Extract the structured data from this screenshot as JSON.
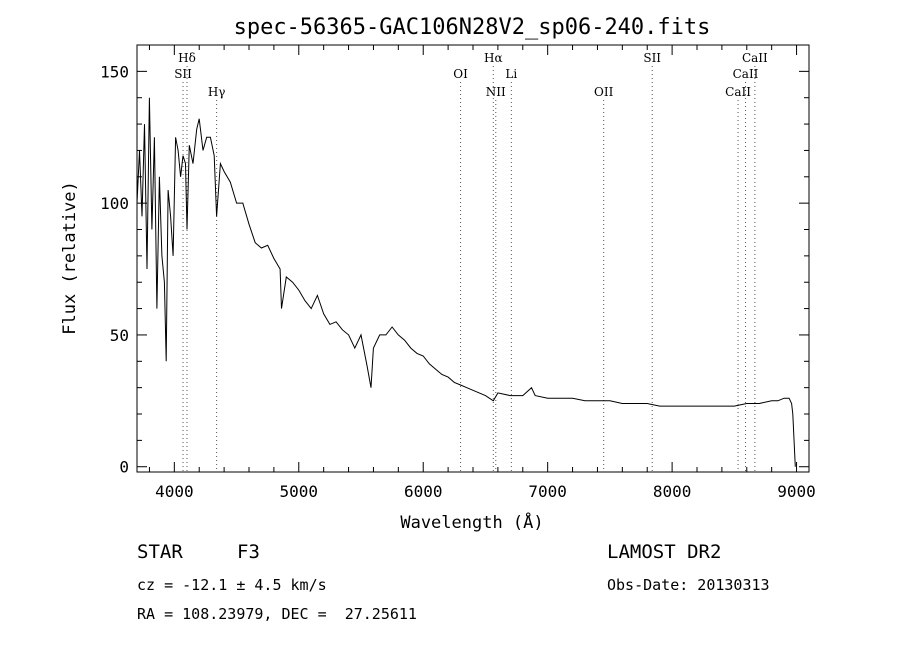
{
  "chart_data": {
    "type": "line",
    "title": "spec-56365-GAC106N28V2_sp06-240.fits",
    "xlabel": "Wavelength (Å)",
    "ylabel": "Flux (relative)",
    "xlim": [
      3700,
      9100
    ],
    "ylim": [
      -2,
      160
    ],
    "xticks": [
      "4000",
      "5000",
      "6000",
      "7000",
      "8000",
      "9000"
    ],
    "yticks": [
      "0",
      "50",
      "100",
      "150"
    ],
    "grid": false,
    "series": [
      {
        "x": [
          3700,
          3720,
          3740,
          3760,
          3780,
          3800,
          3820,
          3840,
          3860,
          3880,
          3900,
          3920,
          3935,
          3950,
          3970,
          3990,
          4010,
          4030,
          4050,
          4070,
          4090,
          4102,
          4120,
          4150,
          4180,
          4200,
          4230,
          4260,
          4290,
          4320,
          4340,
          4370,
          4400,
          4450,
          4500,
          4550,
          4600,
          4650,
          4700,
          4750,
          4800,
          4850,
          4861,
          4900,
          4950,
          5000,
          5050,
          5100,
          5150,
          5200,
          5250,
          5300,
          5350,
          5400,
          5450,
          5500,
          5550,
          5580,
          5600,
          5650,
          5700,
          5750,
          5800,
          5850,
          5900,
          5950,
          6000,
          6050,
          6100,
          6150,
          6200,
          6250,
          6300,
          6350,
          6400,
          6450,
          6500,
          6563,
          6600,
          6700,
          6800,
          6870,
          6900,
          7000,
          7100,
          7200,
          7300,
          7400,
          7500,
          7600,
          7700,
          7800,
          7900,
          8000,
          8100,
          8200,
          8300,
          8400,
          8500,
          8600,
          8700,
          8800,
          8850,
          8900,
          8940,
          8960,
          8970,
          8990
        ],
        "y": [
          100,
          120,
          95,
          130,
          75,
          140,
          90,
          125,
          60,
          110,
          80,
          70,
          40,
          105,
          95,
          80,
          125,
          120,
          110,
          118,
          115,
          90,
          122,
          115,
          128,
          132,
          120,
          125,
          125,
          118,
          95,
          115,
          112,
          108,
          100,
          100,
          92,
          85,
          83,
          84,
          79,
          75,
          60,
          72,
          70,
          67,
          63,
          60,
          65,
          58,
          54,
          55,
          52,
          50,
          45,
          50,
          38,
          30,
          45,
          50,
          50,
          53,
          50,
          48,
          45,
          43,
          42,
          39,
          37,
          35,
          34,
          32,
          31,
          30,
          29,
          28,
          27,
          25,
          28,
          27,
          27,
          30,
          27,
          26,
          26,
          26,
          25,
          25,
          25,
          24,
          24,
          24,
          23,
          23,
          23,
          23,
          23,
          23,
          23,
          24,
          24,
          25,
          25,
          26,
          26,
          24,
          20,
          0
        ]
      }
    ],
    "line_markers": [
      {
        "label": "Hδ",
        "x": 4102,
        "row": 1
      },
      {
        "label": "SII",
        "x": 4070,
        "row": 2
      },
      {
        "label": "Hγ",
        "x": 4340,
        "row": 3
      },
      {
        "label": "OI",
        "x": 6300,
        "row": 2
      },
      {
        "label": "Hα",
        "x": 6563,
        "row": 1
      },
      {
        "label": "NII",
        "x": 6583,
        "row": 3
      },
      {
        "label": "Li",
        "x": 6708,
        "row": 2
      },
      {
        "label": "OII",
        "x": 7450,
        "row": 3
      },
      {
        "label": "SII",
        "x": 7840,
        "row": 1
      },
      {
        "label": "CaII",
        "x": 8665,
        "row": 1
      },
      {
        "label": "CaII",
        "x": 8590,
        "row": 2
      },
      {
        "label": "CaII",
        "x": 8530,
        "row": 3
      }
    ]
  },
  "info": {
    "object_class": "STAR",
    "subclass": "F3",
    "survey": "LAMOST DR2",
    "redshift": "cz = -12.1 ± 4.5 km/s",
    "obs_date": "Obs-Date: 20130313",
    "coords": "RA = 108.23979, DEC =  27.25611"
  }
}
